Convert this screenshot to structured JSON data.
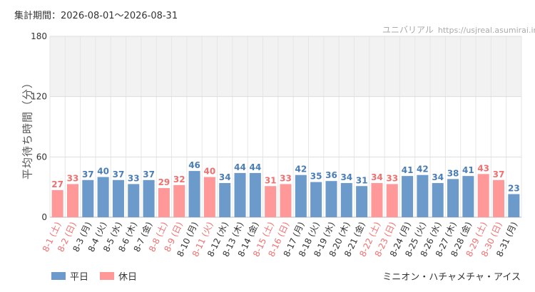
{
  "header": {
    "period_label": "集計期間：2026-08-01～2026-08-31",
    "brand_name": "ユニバリアル",
    "brand_url": "https://usjreal.asumirai.info"
  },
  "footer": {
    "attraction": "ミニオン・ハチャメチャ・アイス"
  },
  "colors": {
    "weekday": "#6b9acb",
    "holiday": "#ff9999",
    "weekday_label": "#4a7db5",
    "holiday_label": "#f07070",
    "axis_text": "#333333",
    "grid": "#e6e6e6",
    "band": "#f2f2f2"
  },
  "chart_data": {
    "type": "bar",
    "ylabel": "平均待ち時間（分）",
    "ylim": [
      0,
      180
    ],
    "yticks": [
      0,
      60,
      120,
      180
    ],
    "band": [
      120,
      180
    ],
    "grid": true,
    "legend_position": "bottom-left",
    "series": [
      {
        "name": "平日",
        "key": "weekday"
      },
      {
        "name": "休日",
        "key": "holiday"
      }
    ],
    "categories": [
      "8-1 (土)",
      "8-2 (日)",
      "8-3 (月)",
      "8-4 (火)",
      "8-5 (水)",
      "8-6 (木)",
      "8-7 (金)",
      "8-8 (土)",
      "8-9 (日)",
      "8-10 (月)",
      "8-11 (火)",
      "8-12 (水)",
      "8-13 (木)",
      "8-14 (金)",
      "8-15 (土)",
      "8-16 (日)",
      "8-17 (月)",
      "8-18 (火)",
      "8-19 (水)",
      "8-20 (木)",
      "8-21 (金)",
      "8-22 (土)",
      "8-23 (日)",
      "8-24 (月)",
      "8-25 (火)",
      "8-26 (水)",
      "8-27 (木)",
      "8-28 (金)",
      "8-29 (土)",
      "8-30 (日)",
      "8-31 (月)"
    ],
    "values": [
      27,
      33,
      37,
      40,
      37,
      33,
      37,
      29,
      32,
      46,
      40,
      34,
      44,
      44,
      31,
      33,
      42,
      35,
      36,
      34,
      31,
      34,
      33,
      41,
      42,
      34,
      38,
      41,
      43,
      37,
      23
    ],
    "day_type": [
      "holiday",
      "holiday",
      "weekday",
      "weekday",
      "weekday",
      "weekday",
      "weekday",
      "holiday",
      "holiday",
      "weekday",
      "holiday",
      "weekday",
      "weekday",
      "weekday",
      "holiday",
      "holiday",
      "weekday",
      "weekday",
      "weekday",
      "weekday",
      "weekday",
      "holiday",
      "holiday",
      "weekday",
      "weekday",
      "weekday",
      "weekday",
      "weekday",
      "holiday",
      "holiday",
      "weekday"
    ]
  }
}
